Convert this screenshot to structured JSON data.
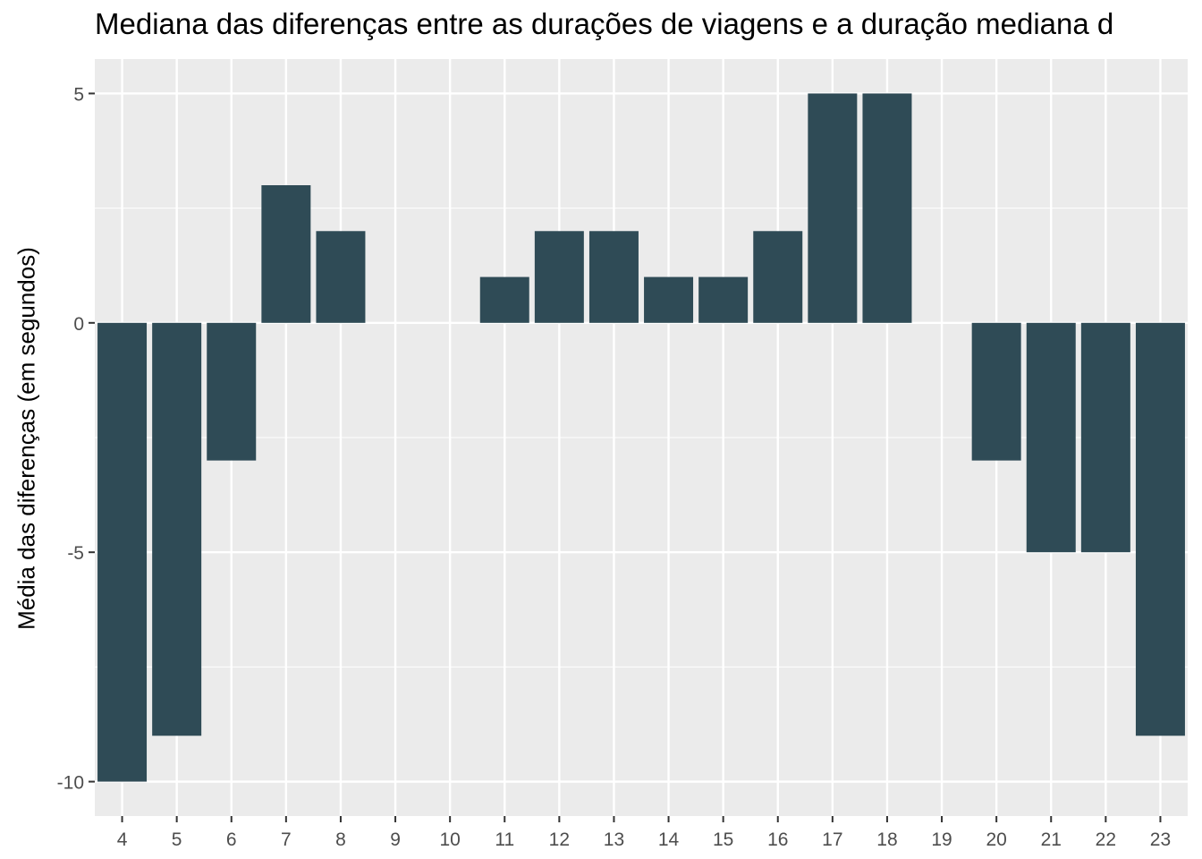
{
  "chart_data": {
    "type": "bar",
    "title": "Mediana das diferenças entre as durações de viagens e a duração mediana d",
    "xlabel": "",
    "ylabel": "Média das diferenças (em segundos)",
    "categories": [
      "4",
      "5",
      "6",
      "7",
      "8",
      "9",
      "10",
      "11",
      "12",
      "13",
      "14",
      "15",
      "16",
      "17",
      "18",
      "19",
      "20",
      "21",
      "22",
      "23"
    ],
    "values": [
      -10,
      -9,
      -3,
      3,
      2,
      0,
      0,
      1,
      2,
      2,
      1,
      1,
      2,
      5,
      5,
      0,
      -3,
      -5,
      -5,
      -9
    ],
    "ylim": [
      -10.75,
      5.75
    ],
    "yticks": [
      -10,
      -5,
      0,
      5
    ],
    "ytick_labels": [
      "-10",
      "-5",
      "0",
      "5"
    ],
    "grid": true,
    "legend": "none",
    "colors": {
      "bar": "#2f4b56",
      "panel": "#ebebeb",
      "grid": "#ffffff",
      "axis_text": "#4d4d4d",
      "tick": "#333333"
    }
  }
}
